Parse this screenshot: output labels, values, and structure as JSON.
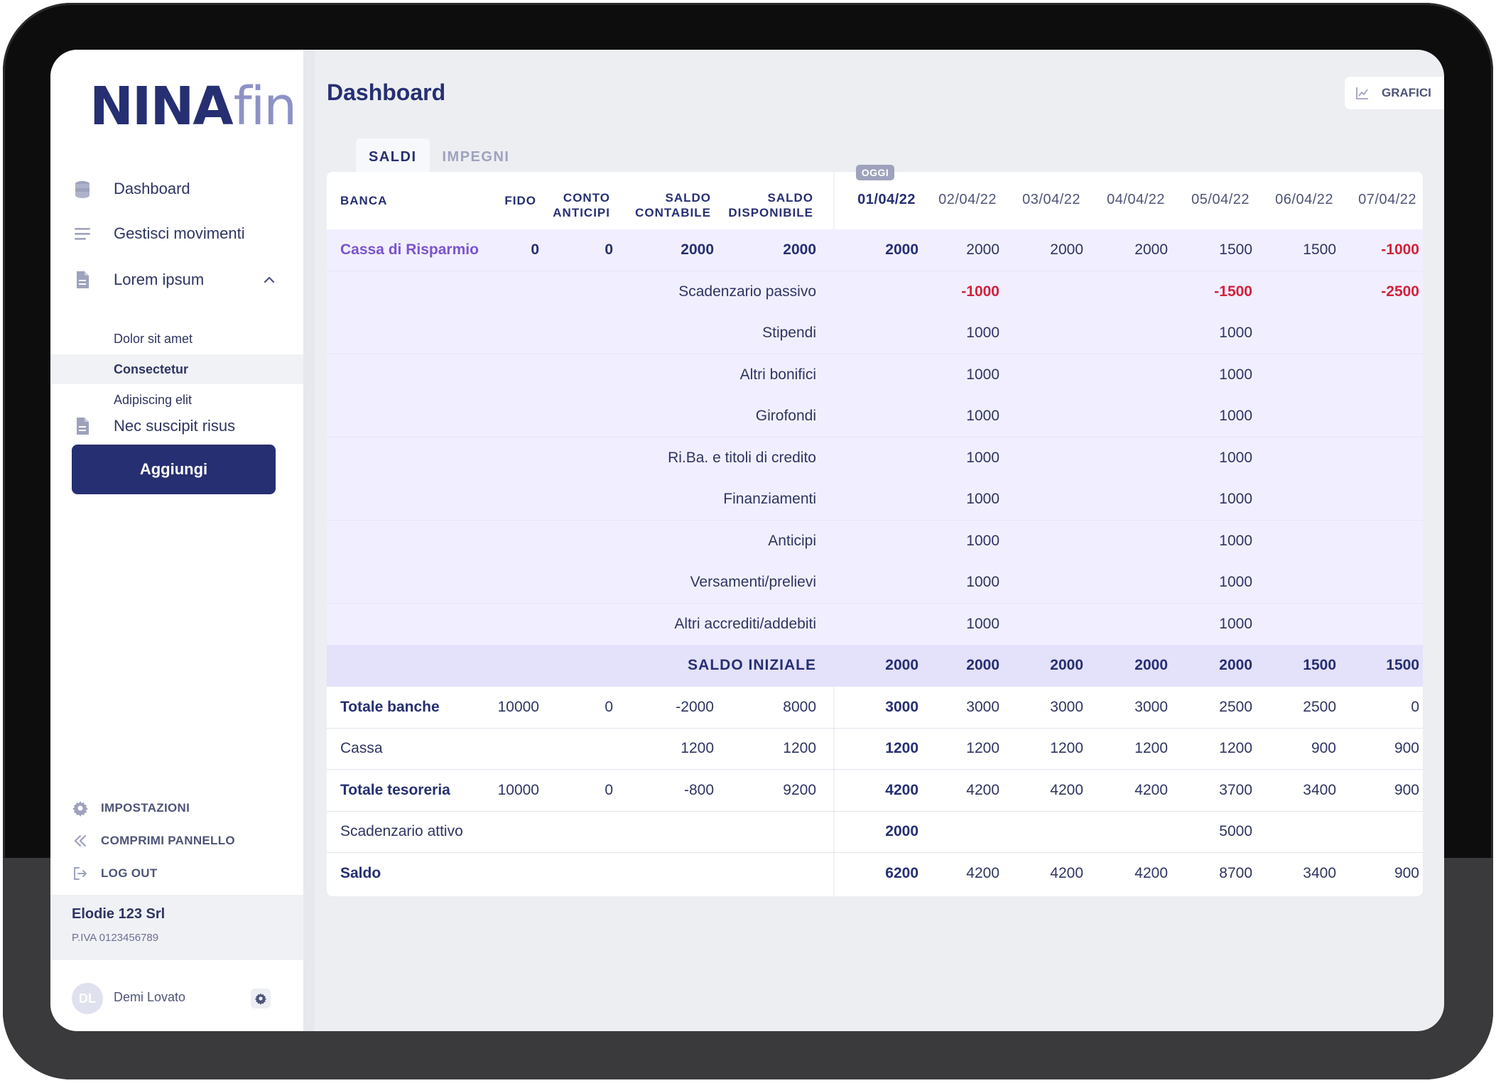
{
  "app": {
    "logo_part1": "NINA",
    "logo_part2": "fin",
    "page_title": "Dashboard"
  },
  "sidebar": {
    "items": [
      {
        "label": "Dashboard",
        "icon": "coins-icon"
      },
      {
        "label": "Gestisci movimenti",
        "icon": "lines-icon"
      },
      {
        "label": "Lorem ipsum",
        "icon": "document-icon"
      },
      {
        "label": "Nec suscipit risus",
        "icon": "document-icon"
      }
    ],
    "subitems": [
      "Dolor sit amet",
      "Consectetur",
      "Adipiscing elit"
    ],
    "active_subitem": "Consectetur",
    "add_button": "Aggiungi",
    "footer_links": [
      {
        "label": "IMPOSTAZIONI",
        "icon": "gear-icon"
      },
      {
        "label": "COMPRIMI PANNELLO",
        "icon": "double-chevron-left-icon"
      },
      {
        "label": "LOG OUT",
        "icon": "logout-icon"
      }
    ],
    "company_name": "Elodie 123 Srl",
    "company_vat": "P.IVA 0123456789",
    "user_initials": "DL",
    "user_name": "Demi Lovato"
  },
  "toolbar": {
    "grafici_label": "GRAFICI"
  },
  "tabs": [
    {
      "label": "SALDI",
      "active": true
    },
    {
      "label": "IMPEGNI",
      "active": false
    }
  ],
  "table": {
    "headers": {
      "banca": "BANCA",
      "fido": "FIDO",
      "conto_anticipi": [
        "CONTO",
        "ANTICIPI"
      ],
      "saldo_contabile": [
        "SALDO",
        "CONTABILE"
      ],
      "saldo_disponibile": [
        "SALDO",
        "DISPONIBILE"
      ]
    },
    "today_badge": "OGGI",
    "dates": [
      "01/04/22",
      "02/04/22",
      "03/04/22",
      "04/04/22",
      "05/04/22",
      "06/04/22",
      "07/04/22"
    ],
    "bank_row": {
      "name": "Cassa di Risparmio",
      "fido": "0",
      "conto_anticipi": "0",
      "saldo_contabile": "2000",
      "saldo_disponibile": "2000",
      "values": [
        "2000",
        "2000",
        "2000",
        "2000",
        "1500",
        "1500",
        "-1000"
      ]
    },
    "detail_rows": [
      {
        "label": "Scadenzario passivo",
        "values": [
          "",
          "-1000",
          "",
          "",
          "-1500",
          "",
          "-2500"
        ]
      },
      {
        "label": "Stipendi",
        "values": [
          "",
          "1000",
          "",
          "",
          "1000",
          "",
          ""
        ]
      },
      {
        "label": "Altri bonifici",
        "values": [
          "",
          "1000",
          "",
          "",
          "1000",
          "",
          ""
        ]
      },
      {
        "label": "Girofondi",
        "values": [
          "",
          "1000",
          "",
          "",
          "1000",
          "",
          ""
        ]
      },
      {
        "label": "Ri.Ba. e titoli di credito",
        "values": [
          "",
          "1000",
          "",
          "",
          "1000",
          "",
          ""
        ]
      },
      {
        "label": "Finanziamenti",
        "values": [
          "",
          "1000",
          "",
          "",
          "1000",
          "",
          ""
        ]
      },
      {
        "label": "Anticipi",
        "values": [
          "",
          "1000",
          "",
          "",
          "1000",
          "",
          ""
        ]
      },
      {
        "label": "Versamenti/prelievi",
        "values": [
          "",
          "1000",
          "",
          "",
          "1000",
          "",
          ""
        ]
      },
      {
        "label": "Altri accrediti/addebiti",
        "values": [
          "",
          "1000",
          "",
          "",
          "1000",
          "",
          ""
        ]
      }
    ],
    "saldo_iniziale": {
      "label": "SALDO INIZIALE",
      "values": [
        "2000",
        "2000",
        "2000",
        "2000",
        "2000",
        "1500",
        "1500"
      ]
    },
    "summary_rows": [
      {
        "label": "Totale banche",
        "bold_label": true,
        "fido": "10000",
        "conto_anticipi": "0",
        "saldo_contabile": "-2000",
        "saldo_disponibile": "8000",
        "values": [
          "3000",
          "3000",
          "3000",
          "3000",
          "2500",
          "2500",
          "0"
        ]
      },
      {
        "label": "Cassa",
        "bold_label": false,
        "fido": "",
        "conto_anticipi": "",
        "saldo_contabile": "1200",
        "saldo_disponibile": "1200",
        "values": [
          "1200",
          "1200",
          "1200",
          "1200",
          "1200",
          "900",
          "900"
        ]
      },
      {
        "label": "Totale tesoreria",
        "bold_label": true,
        "fido": "10000",
        "conto_anticipi": "0",
        "saldo_contabile": "-800",
        "saldo_disponibile": "9200",
        "values": [
          "4200",
          "4200",
          "4200",
          "4200",
          "3700",
          "3400",
          "900"
        ]
      },
      {
        "label": "Scadenzario attivo",
        "bold_label": false,
        "fido": "",
        "conto_anticipi": "",
        "saldo_contabile": "",
        "saldo_disponibile": "",
        "values": [
          "2000",
          "",
          "",
          "",
          "5000",
          "",
          ""
        ]
      },
      {
        "label": "Saldo",
        "bold_label": true,
        "fido": "",
        "conto_anticipi": "",
        "saldo_contabile": "",
        "saldo_disponibile": "",
        "values": [
          "6200",
          "4200",
          "4200",
          "4200",
          "8700",
          "3400",
          "900"
        ]
      }
    ]
  },
  "colors": {
    "primary": "#262f72",
    "bank_name": "#7b53d1",
    "negative": "#d4213c",
    "highlight_row": "#f1efff"
  }
}
